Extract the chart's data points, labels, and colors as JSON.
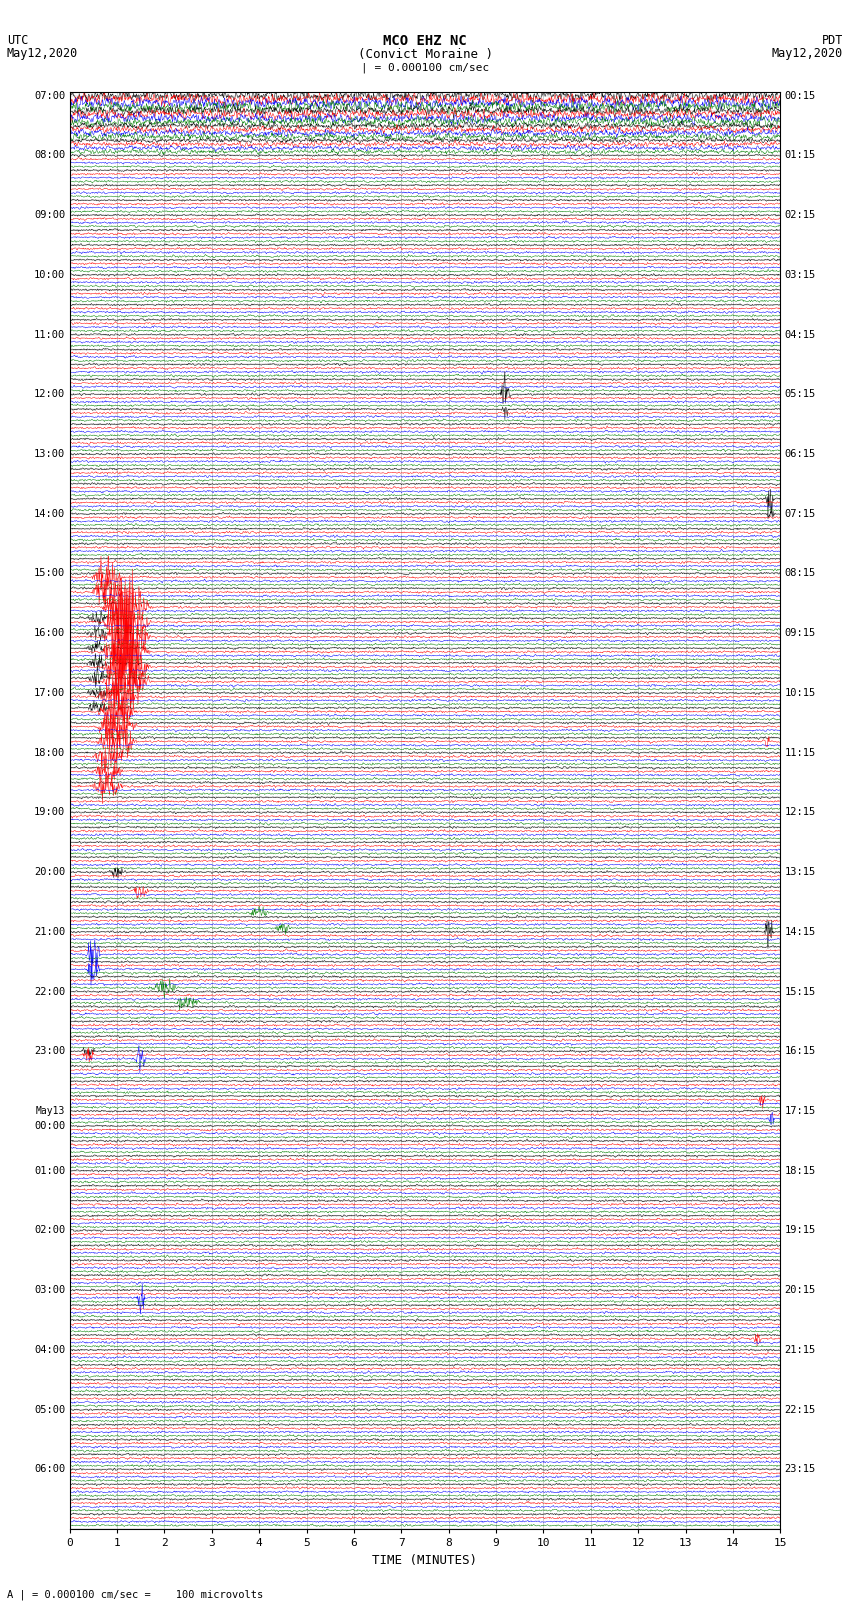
{
  "title_line1": "MCO EHZ NC",
  "title_line2": "(Convict Moraine )",
  "scale_bar": "| = 0.000100 cm/sec",
  "left_label_top": "UTC",
  "left_label_date": "May12,2020",
  "right_label_top": "PDT",
  "right_label_date": "May12,2020",
  "xlabel": "TIME (MINUTES)",
  "footnote": "A | = 0.000100 cm/sec =    100 microvolts",
  "left_times_utc": [
    "07:00",
    "",
    "",
    "",
    "08:00",
    "",
    "",
    "",
    "09:00",
    "",
    "",
    "",
    "10:00",
    "",
    "",
    "",
    "11:00",
    "",
    "",
    "",
    "12:00",
    "",
    "",
    "",
    "13:00",
    "",
    "",
    "",
    "14:00",
    "",
    "",
    "",
    "15:00",
    "",
    "",
    "",
    "16:00",
    "",
    "",
    "",
    "17:00",
    "",
    "",
    "",
    "18:00",
    "",
    "",
    "",
    "19:00",
    "",
    "",
    "",
    "20:00",
    "",
    "",
    "",
    "21:00",
    "",
    "",
    "",
    "22:00",
    "",
    "",
    "",
    "23:00",
    "",
    "",
    "",
    "May13",
    "00:00",
    "",
    "",
    "01:00",
    "",
    "",
    "",
    "02:00",
    "",
    "",
    "",
    "03:00",
    "",
    "",
    "",
    "04:00",
    "",
    "",
    "",
    "05:00",
    "",
    "",
    "",
    "06:00",
    "",
    "",
    ""
  ],
  "right_times_pdt": [
    "00:15",
    "",
    "",
    "",
    "01:15",
    "",
    "",
    "",
    "02:15",
    "",
    "",
    "",
    "03:15",
    "",
    "",
    "",
    "04:15",
    "",
    "",
    "",
    "05:15",
    "",
    "",
    "",
    "06:15",
    "",
    "",
    "",
    "07:15",
    "",
    "",
    "",
    "08:15",
    "",
    "",
    "",
    "09:15",
    "",
    "",
    "",
    "10:15",
    "",
    "",
    "",
    "11:15",
    "",
    "",
    "",
    "12:15",
    "",
    "",
    "",
    "13:15",
    "",
    "",
    "",
    "14:15",
    "",
    "",
    "",
    "15:15",
    "",
    "",
    "",
    "16:15",
    "",
    "",
    "",
    "17:15",
    "",
    "",
    "",
    "18:15",
    "",
    "",
    "",
    "19:15",
    "",
    "",
    "",
    "20:15",
    "",
    "",
    "",
    "21:15",
    "",
    "",
    "",
    "22:15",
    "",
    "",
    "",
    "23:15",
    "",
    "",
    ""
  ],
  "colors": [
    "black",
    "red",
    "blue",
    "green"
  ],
  "n_rows": 96,
  "n_traces_per_row": 4,
  "x_ticks": [
    0,
    1,
    2,
    3,
    4,
    5,
    6,
    7,
    8,
    9,
    10,
    11,
    12,
    13,
    14,
    15
  ],
  "bg_color": "white",
  "line_width": 0.35,
  "base_amp": 0.32,
  "seed": 42
}
